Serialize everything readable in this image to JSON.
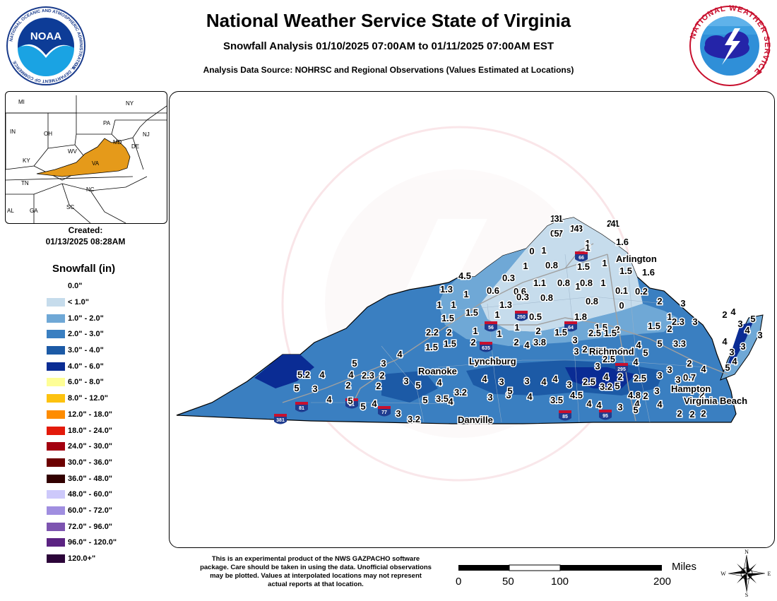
{
  "header": {
    "title": "National Weather Service State of Virginia",
    "subtitle": "Snowfall Analysis 01/10/2025 07:00AM to 01/11/2025 07:00AM EST",
    "source": "Analysis Data Source: NOHRSC and Regional Observations (Values Estimated at Locations)"
  },
  "logos": {
    "noaa_text": "NOAA",
    "noaa_ring": "NATIONAL OCEANIC AND ATMOSPHERIC ADMINISTRATION · U.S. DEPARTMENT OF COMMERCE",
    "nws_ring": "NATIONAL WEATHER SERVICE"
  },
  "inset": {
    "states": [
      "MI",
      "NY",
      "PA",
      "OH",
      "IN",
      "NJ",
      "MD",
      "DE",
      "WV",
      "KY",
      "VA",
      "TN",
      "NC",
      "AL",
      "GA",
      "SC"
    ],
    "highlight_color": "#e59a1a"
  },
  "created": {
    "label": "Created:",
    "value": "01/13/2025 08:28AM"
  },
  "legend": {
    "title": "Snowfall (in)",
    "items": [
      {
        "label": "0.0\"",
        "color": ""
      },
      {
        "label": "< 1.0\"",
        "color": "#c6dcec"
      },
      {
        "label": "1.0\" - 2.0\"",
        "color": "#6fa8d6"
      },
      {
        "label": "2.0\" - 3.0\"",
        "color": "#3a7fc1"
      },
      {
        "label": "3.0\" - 4.0\"",
        "color": "#1c5aa6"
      },
      {
        "label": "4.0\" - 6.0\"",
        "color": "#0a2c94"
      },
      {
        "label": "6.0\" - 8.0\"",
        "color": "#fefe96"
      },
      {
        "label": "8.0\" - 12.0\"",
        "color": "#fdc20f"
      },
      {
        "label": "12.0\" - 18.0\"",
        "color": "#fe8c00"
      },
      {
        "label": "18.0\" - 24.0\"",
        "color": "#e31a0b"
      },
      {
        "label": "24.0\" - 30.0\"",
        "color": "#a3000f"
      },
      {
        "label": "30.0\" - 36.0\"",
        "color": "#6c0000"
      },
      {
        "label": "36.0\" - 48.0\"",
        "color": "#320000"
      },
      {
        "label": "48.0\" - 60.0\"",
        "color": "#cdc9fb"
      },
      {
        "label": "60.0\" - 72.0\"",
        "color": "#a08ee0"
      },
      {
        "label": "72.0\" - 96.0\"",
        "color": "#7d54b0"
      },
      {
        "label": "96.0\" - 120.0\"",
        "color": "#5b2382"
      },
      {
        "label": "120.0+\"",
        "color": "#2c0539"
      }
    ]
  },
  "map": {
    "cities": [
      "Arlington",
      "Richmond",
      "Roanoke",
      "Lynchburg",
      "Hampton",
      "Virginia Beach",
      "Danville"
    ],
    "interstates": [
      "66",
      "250",
      "56",
      "64",
      "635",
      "295",
      "81",
      "21",
      "77",
      "381",
      "85",
      "95"
    ],
    "values": [
      "1.1",
      "0.7",
      "1.3",
      "2.1",
      "1",
      "1.6",
      "0",
      "1",
      "1",
      "1.5",
      "1.6",
      "1",
      "0.8",
      "1",
      "1.5",
      "1",
      "4.5",
      "0.3",
      "1.1",
      "0.8",
      "0.8",
      "1",
      "1.3",
      "1",
      "0.6",
      "0.6",
      "0.3",
      "0.8",
      "0.1",
      "0.2",
      "2",
      "3",
      "1",
      "1",
      "0.8",
      "0",
      "1",
      "1.3",
      "1.5",
      "1.5",
      "1",
      "0.5",
      "1.8",
      "1.5",
      "2",
      "2.3",
      "3",
      "2.2",
      "2",
      "1",
      "1",
      "1",
      "2",
      "1.5",
      "2.5",
      "1.5",
      "1.5",
      "2",
      "1.5",
      "1.5",
      "2",
      "2",
      "4",
      "3.8",
      "3",
      "3",
      "4",
      "5",
      "3.3",
      "2",
      "4",
      "5",
      "4",
      "3",
      "2",
      "2.3",
      "4",
      "5.2",
      "4",
      "2",
      "2",
      "3",
      "5",
      "4",
      "5",
      "4",
      "3",
      "3",
      "4",
      "3",
      "2.5",
      "3.2",
      "5",
      "4.8",
      "2",
      "3",
      "4",
      "5",
      "3",
      "4",
      "5",
      "5",
      "4",
      "3",
      "3.2",
      "3.5",
      "3.2",
      "4",
      "3",
      "5",
      "3",
      "4",
      "4",
      "3.5",
      "4.5",
      "4",
      "4",
      "3",
      "5",
      "4",
      "2",
      "2",
      "2",
      "2",
      "0.7",
      "3",
      "3",
      "3",
      "3",
      "2",
      "5",
      "4",
      "2",
      "4",
      "5",
      "3",
      "2.5",
      "2.5",
      "2",
      "4",
      "3",
      "4",
      "5",
      "3",
      "3",
      "4",
      "5",
      "3",
      "4",
      "3",
      "5",
      "4",
      "4"
    ]
  },
  "disclaimer": "This is an experimental product of the NWS GAZPACHO software package. Care should be taken in using the data. Unofficial observations may be plotted. Values at interpolated locations may not represent actual reports at that location.",
  "scale": {
    "unit": "Miles",
    "ticks": [
      "0",
      "50",
      "100",
      "200"
    ]
  },
  "compass": {
    "n": "N",
    "s": "S",
    "e": "E",
    "w": "W"
  }
}
